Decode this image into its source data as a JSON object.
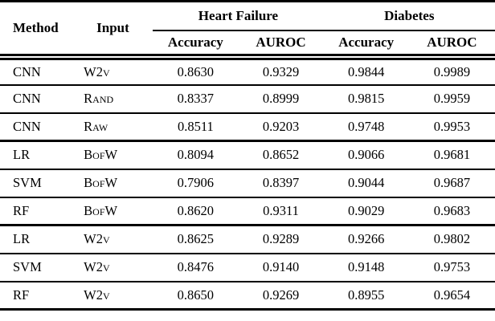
{
  "table": {
    "headers": {
      "method": "Method",
      "input": "Input",
      "heart_failure": "Heart Failure",
      "diabetes": "Diabetes",
      "hf_accuracy": "Accuracy",
      "hf_auroc": "AUROC",
      "db_accuracy": "Accuracy",
      "db_auroc": "AUROC"
    },
    "rows": [
      {
        "method": "CNN",
        "input": "W2v",
        "hf_acc": "0.8630",
        "hf_auroc": "0.9329",
        "db_acc": "0.9844",
        "db_auroc": "0.9989"
      },
      {
        "method": "CNN",
        "input": "Rand",
        "hf_acc": "0.8337",
        "hf_auroc": "0.8999",
        "db_acc": "0.9815",
        "db_auroc": "0.9959"
      },
      {
        "method": "CNN",
        "input": "Raw",
        "hf_acc": "0.8511",
        "hf_auroc": "0.9203",
        "db_acc": "0.9748",
        "db_auroc": "0.9953"
      },
      {
        "method": "LR",
        "input": "BofW",
        "hf_acc": "0.8094",
        "hf_auroc": "0.8652",
        "db_acc": "0.9066",
        "db_auroc": "0.9681"
      },
      {
        "method": "SVM",
        "input": "BofW",
        "hf_acc": "0.7906",
        "hf_auroc": "0.8397",
        "db_acc": "0.9044",
        "db_auroc": "0.9687"
      },
      {
        "method": "RF",
        "input": "BofW",
        "hf_acc": "0.8620",
        "hf_auroc": "0.9311",
        "db_acc": "0.9029",
        "db_auroc": "0.9683"
      },
      {
        "method": "LR",
        "input": "W2v",
        "hf_acc": "0.8625",
        "hf_auroc": "0.9289",
        "db_acc": "0.9266",
        "db_auroc": "0.9802"
      },
      {
        "method": "SVM",
        "input": "W2v",
        "hf_acc": "0.8476",
        "hf_auroc": "0.9140",
        "db_acc": "0.9148",
        "db_auroc": "0.9753"
      },
      {
        "method": "RF",
        "input": "W2v",
        "hf_acc": "0.8650",
        "hf_auroc": "0.9269",
        "db_acc": "0.8955",
        "db_auroc": "0.9654"
      }
    ],
    "colors": {
      "text": "#000000",
      "background": "#ffffff",
      "rule": "#000000"
    }
  }
}
